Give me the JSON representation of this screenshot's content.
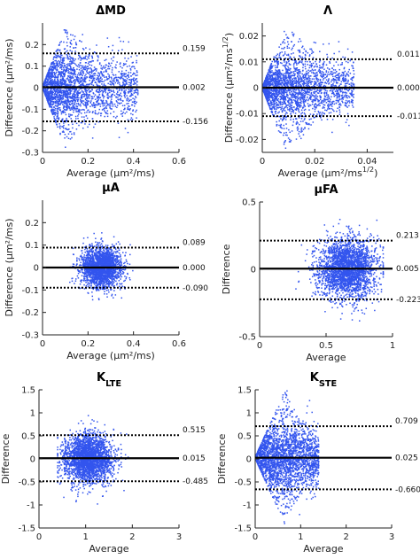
{
  "colors": {
    "points": "#3355ee",
    "mean_line": "#000000",
    "limit_line": "#000000",
    "axes": "#222222"
  },
  "chart_data": [
    {
      "type": "scatter",
      "title": "ΔMD",
      "xlabel": "Average (μm²/ms)",
      "ylabel": "Difference (μm²/ms)",
      "xlim": [
        0,
        0.6
      ],
      "ylim": [
        -0.3,
        0.3
      ],
      "xticks": [
        "0",
        "0.2",
        "0.4",
        "0.6"
      ],
      "yticks": [
        "-0.3",
        "-0.2",
        "-0.1",
        "0",
        "0.1",
        "0.2"
      ],
      "mean": 0.002,
      "mean_label": "0.002",
      "upper": 0.159,
      "upper_label": "0.159",
      "lower": -0.156,
      "lower_label": "-0.156",
      "cloud": {
        "shape": "fan",
        "x_start": 0.0,
        "x_full": 0.1,
        "x_end": 0.42,
        "y_max": 0.28,
        "n": 2400
      }
    },
    {
      "type": "scatter",
      "title": "Λ",
      "xlabel": "Average (μm²/ms^1/2)",
      "ylabel": "Difference (μm²/ms^1/2)",
      "xlim": [
        0,
        0.05
      ],
      "ylim": [
        -0.025,
        0.025
      ],
      "xticks": [
        "0",
        "0.02",
        "0.04"
      ],
      "yticks": [
        "-0.02",
        "-0.01",
        "0",
        "0.01",
        "0.02"
      ],
      "mean": 0.0,
      "mean_label": "0.000",
      "upper": 0.011,
      "upper_label": "0.011",
      "lower": -0.011,
      "lower_label": "-0.011",
      "cloud": {
        "shape": "fan",
        "x_start": 0.0,
        "x_full": 0.009,
        "x_end": 0.035,
        "y_max": 0.024,
        "n": 2400
      }
    },
    {
      "type": "scatter",
      "title": "μA",
      "xlabel": "Average (μm²/ms)",
      "ylabel": "Difference (μm²/ms)",
      "xlim": [
        0,
        0.6
      ],
      "ylim": [
        -0.3,
        0.3
      ],
      "xticks": [
        "0",
        "0.2",
        "0.4",
        "0.6"
      ],
      "yticks": [
        "-0.3",
        "-0.2",
        "-0.1",
        "0",
        "0.1",
        "0.2"
      ],
      "mean": 0.0,
      "mean_label": "0.000",
      "upper": 0.089,
      "upper_label": "0.089",
      "lower": -0.09,
      "lower_label": "-0.090",
      "cloud": {
        "shape": "blob",
        "x_center": 0.26,
        "x_sd": 0.045,
        "y_sd": 0.046,
        "x_min": 0.12,
        "x_max": 0.4,
        "n": 2200
      }
    },
    {
      "type": "scatter",
      "title": "μFA",
      "xlabel": "Average",
      "ylabel": "Difference",
      "xlim": [
        0,
        1
      ],
      "ylim": [
        -0.5,
        0.5
      ],
      "xticks": [
        "0",
        "0.5",
        "1"
      ],
      "yticks": [
        "-0.5",
        "0",
        "0.5"
      ],
      "mean": 0.005,
      "mean_label": "0.005",
      "upper": 0.213,
      "upper_label": "0.213",
      "lower": -0.223,
      "lower_label": "-0.223",
      "cloud": {
        "shape": "blob",
        "x_center": 0.66,
        "x_sd": 0.11,
        "y_sd": 0.11,
        "x_min": 0.25,
        "x_max": 0.93,
        "n": 2600
      }
    },
    {
      "type": "scatter",
      "title": "K_LTE",
      "xlabel": "Average",
      "ylabel": "Difference",
      "xlim": [
        0,
        3
      ],
      "ylim": [
        -1.5,
        1.5
      ],
      "xticks": [
        "0",
        "1",
        "2",
        "3"
      ],
      "yticks": [
        "-1.5",
        "-1",
        "-0.5",
        "0",
        "0.5",
        "1",
        "1.5"
      ],
      "mean": 0.015,
      "mean_label": "0.015",
      "upper": 0.515,
      "upper_label": "0.515",
      "lower": -0.485,
      "lower_label": "-0.485",
      "cloud": {
        "shape": "blob",
        "x_center": 1.05,
        "x_sd": 0.26,
        "y_sd": 0.26,
        "x_min": 0.4,
        "x_max": 2.7,
        "n": 2600
      }
    },
    {
      "type": "scatter",
      "title": "K_STE",
      "xlabel": "Average",
      "ylabel": "Difference",
      "xlim": [
        0,
        3
      ],
      "ylim": [
        -1.5,
        1.5
      ],
      "xticks": [
        "0",
        "1",
        "2",
        "3"
      ],
      "yticks": [
        "-1.5",
        "-1",
        "-0.5",
        "0",
        "0.5",
        "1",
        "1.5"
      ],
      "mean": 0.025,
      "mean_label": "0.025",
      "upper": 0.709,
      "upper_label": "0.709",
      "lower": -0.66,
      "lower_label": "-0.660",
      "cloud": {
        "shape": "fan",
        "x_start": 0.0,
        "x_full": 0.65,
        "x_end": 1.4,
        "y_max": 1.45,
        "n": 2600
      }
    }
  ]
}
